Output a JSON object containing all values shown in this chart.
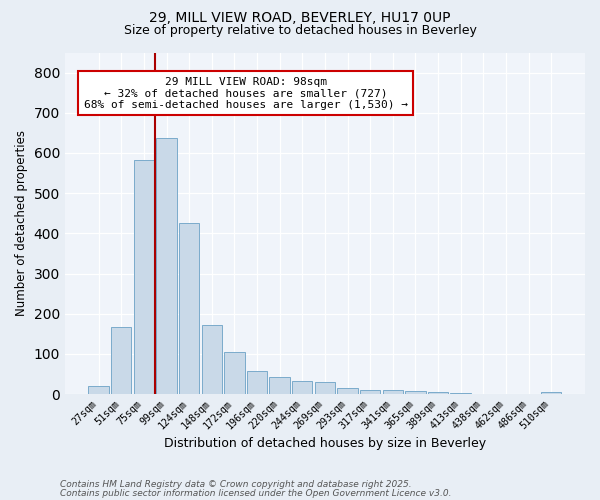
{
  "title1": "29, MILL VIEW ROAD, BEVERLEY, HU17 0UP",
  "title2": "Size of property relative to detached houses in Beverley",
  "xlabel": "Distribution of detached houses by size in Beverley",
  "ylabel": "Number of detached properties",
  "bar_labels": [
    "27sqm",
    "51sqm",
    "75sqm",
    "99sqm",
    "124sqm",
    "148sqm",
    "172sqm",
    "196sqm",
    "220sqm",
    "244sqm",
    "269sqm",
    "293sqm",
    "317sqm",
    "341sqm",
    "365sqm",
    "389sqm",
    "413sqm",
    "438sqm",
    "462sqm",
    "486sqm",
    "510sqm"
  ],
  "bar_values": [
    20,
    168,
    583,
    637,
    425,
    172,
    105,
    57,
    42,
    33,
    30,
    14,
    9,
    9,
    7,
    5,
    3,
    1,
    0,
    0,
    6
  ],
  "bar_color": "#c9d9e8",
  "bar_edge_color": "#7aabcb",
  "vline_x": 3.0,
  "vline_color": "#aa0000",
  "annotation_title": "29 MILL VIEW ROAD: 98sqm",
  "annotation_line1": "← 32% of detached houses are smaller (727)",
  "annotation_line2": "68% of semi-detached houses are larger (1,530) →",
  "annotation_box_color": "#ffffff",
  "annotation_box_edge": "#cc0000",
  "ylim": [
    0,
    850
  ],
  "yticks": [
    0,
    100,
    200,
    300,
    400,
    500,
    600,
    700,
    800
  ],
  "footer1": "Contains HM Land Registry data © Crown copyright and database right 2025.",
  "footer2": "Contains public sector information licensed under the Open Government Licence v3.0.",
  "bg_color": "#e8eef5",
  "plot_bg_color": "#f0f4fa"
}
